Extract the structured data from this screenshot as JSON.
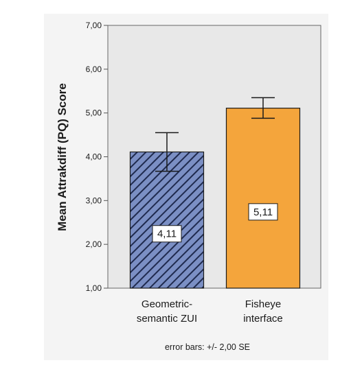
{
  "chart_data": {
    "type": "bar",
    "categories": [
      "Geometric-semantic ZUI",
      "Fisheye interface"
    ],
    "category_lines": [
      [
        "Geometric-",
        "semantic ZUI"
      ],
      [
        "Fisheye",
        "interface"
      ]
    ],
    "values": [
      4.11,
      5.11
    ],
    "data_labels": [
      "4,11",
      "5,11"
    ],
    "error_bars": [
      {
        "low": 3.67,
        "high": 4.55
      },
      {
        "low": 4.88,
        "high": 5.35
      }
    ],
    "ylabel": "Mean Attrakdiff (PQ) Score",
    "xlabel": "",
    "ylim": [
      1,
      7
    ],
    "yticks": [
      1,
      2,
      3,
      4,
      5,
      6,
      7
    ],
    "ytick_labels": [
      "1,00",
      "2,00",
      "3,00",
      "4,00",
      "5,00",
      "6,00",
      "7,00"
    ],
    "note": "error bars: +/- 2,00 SE",
    "grid": false,
    "colors": {
      "plot_background": "#e8e8e8",
      "bar_1": "#7b8fc4",
      "bar_1_hatch": "#1f2a4e",
      "bar_2": "#f4a53c",
      "frame_background": "#f4f4f4"
    }
  }
}
